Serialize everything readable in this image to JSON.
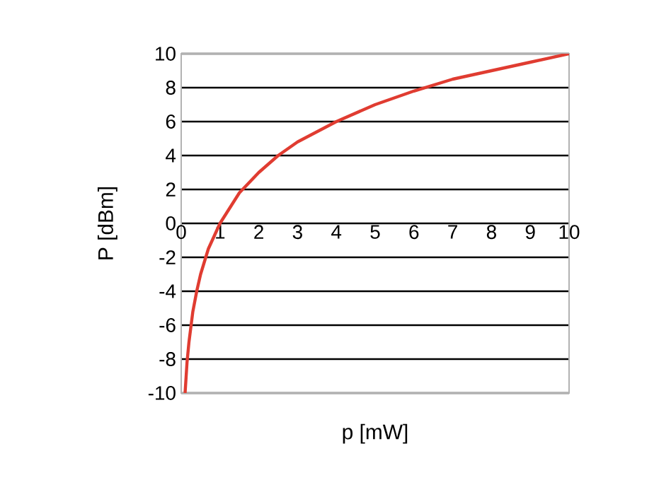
{
  "chart_data": {
    "type": "line",
    "xlabel": "p [mW]",
    "ylabel": "P [dBm]",
    "x": [
      0.1,
      0.15,
      0.2,
      0.3,
      0.4,
      0.5,
      0.7,
      1,
      1.5,
      2,
      2.5,
      3,
      4,
      5,
      6,
      7,
      8,
      9,
      10
    ],
    "series": [
      {
        "color": "#e03c31",
        "values": [
          -10,
          -8.2,
          -7,
          -5.2,
          -4,
          -3,
          -1.5,
          0,
          1.8,
          3,
          4,
          4.8,
          6,
          7,
          7.8,
          8.5,
          9,
          9.5,
          10
        ]
      }
    ],
    "xlim": [
      0,
      10
    ],
    "ylim": [
      -10,
      10
    ],
    "xticks": [
      0,
      1,
      2,
      3,
      4,
      5,
      6,
      7,
      8,
      9,
      10
    ],
    "yticks": [
      -10,
      -8,
      -6,
      -4,
      -2,
      0,
      2,
      4,
      6,
      8,
      10
    ],
    "grid": "y",
    "marker": "none",
    "line_style": "solid"
  }
}
